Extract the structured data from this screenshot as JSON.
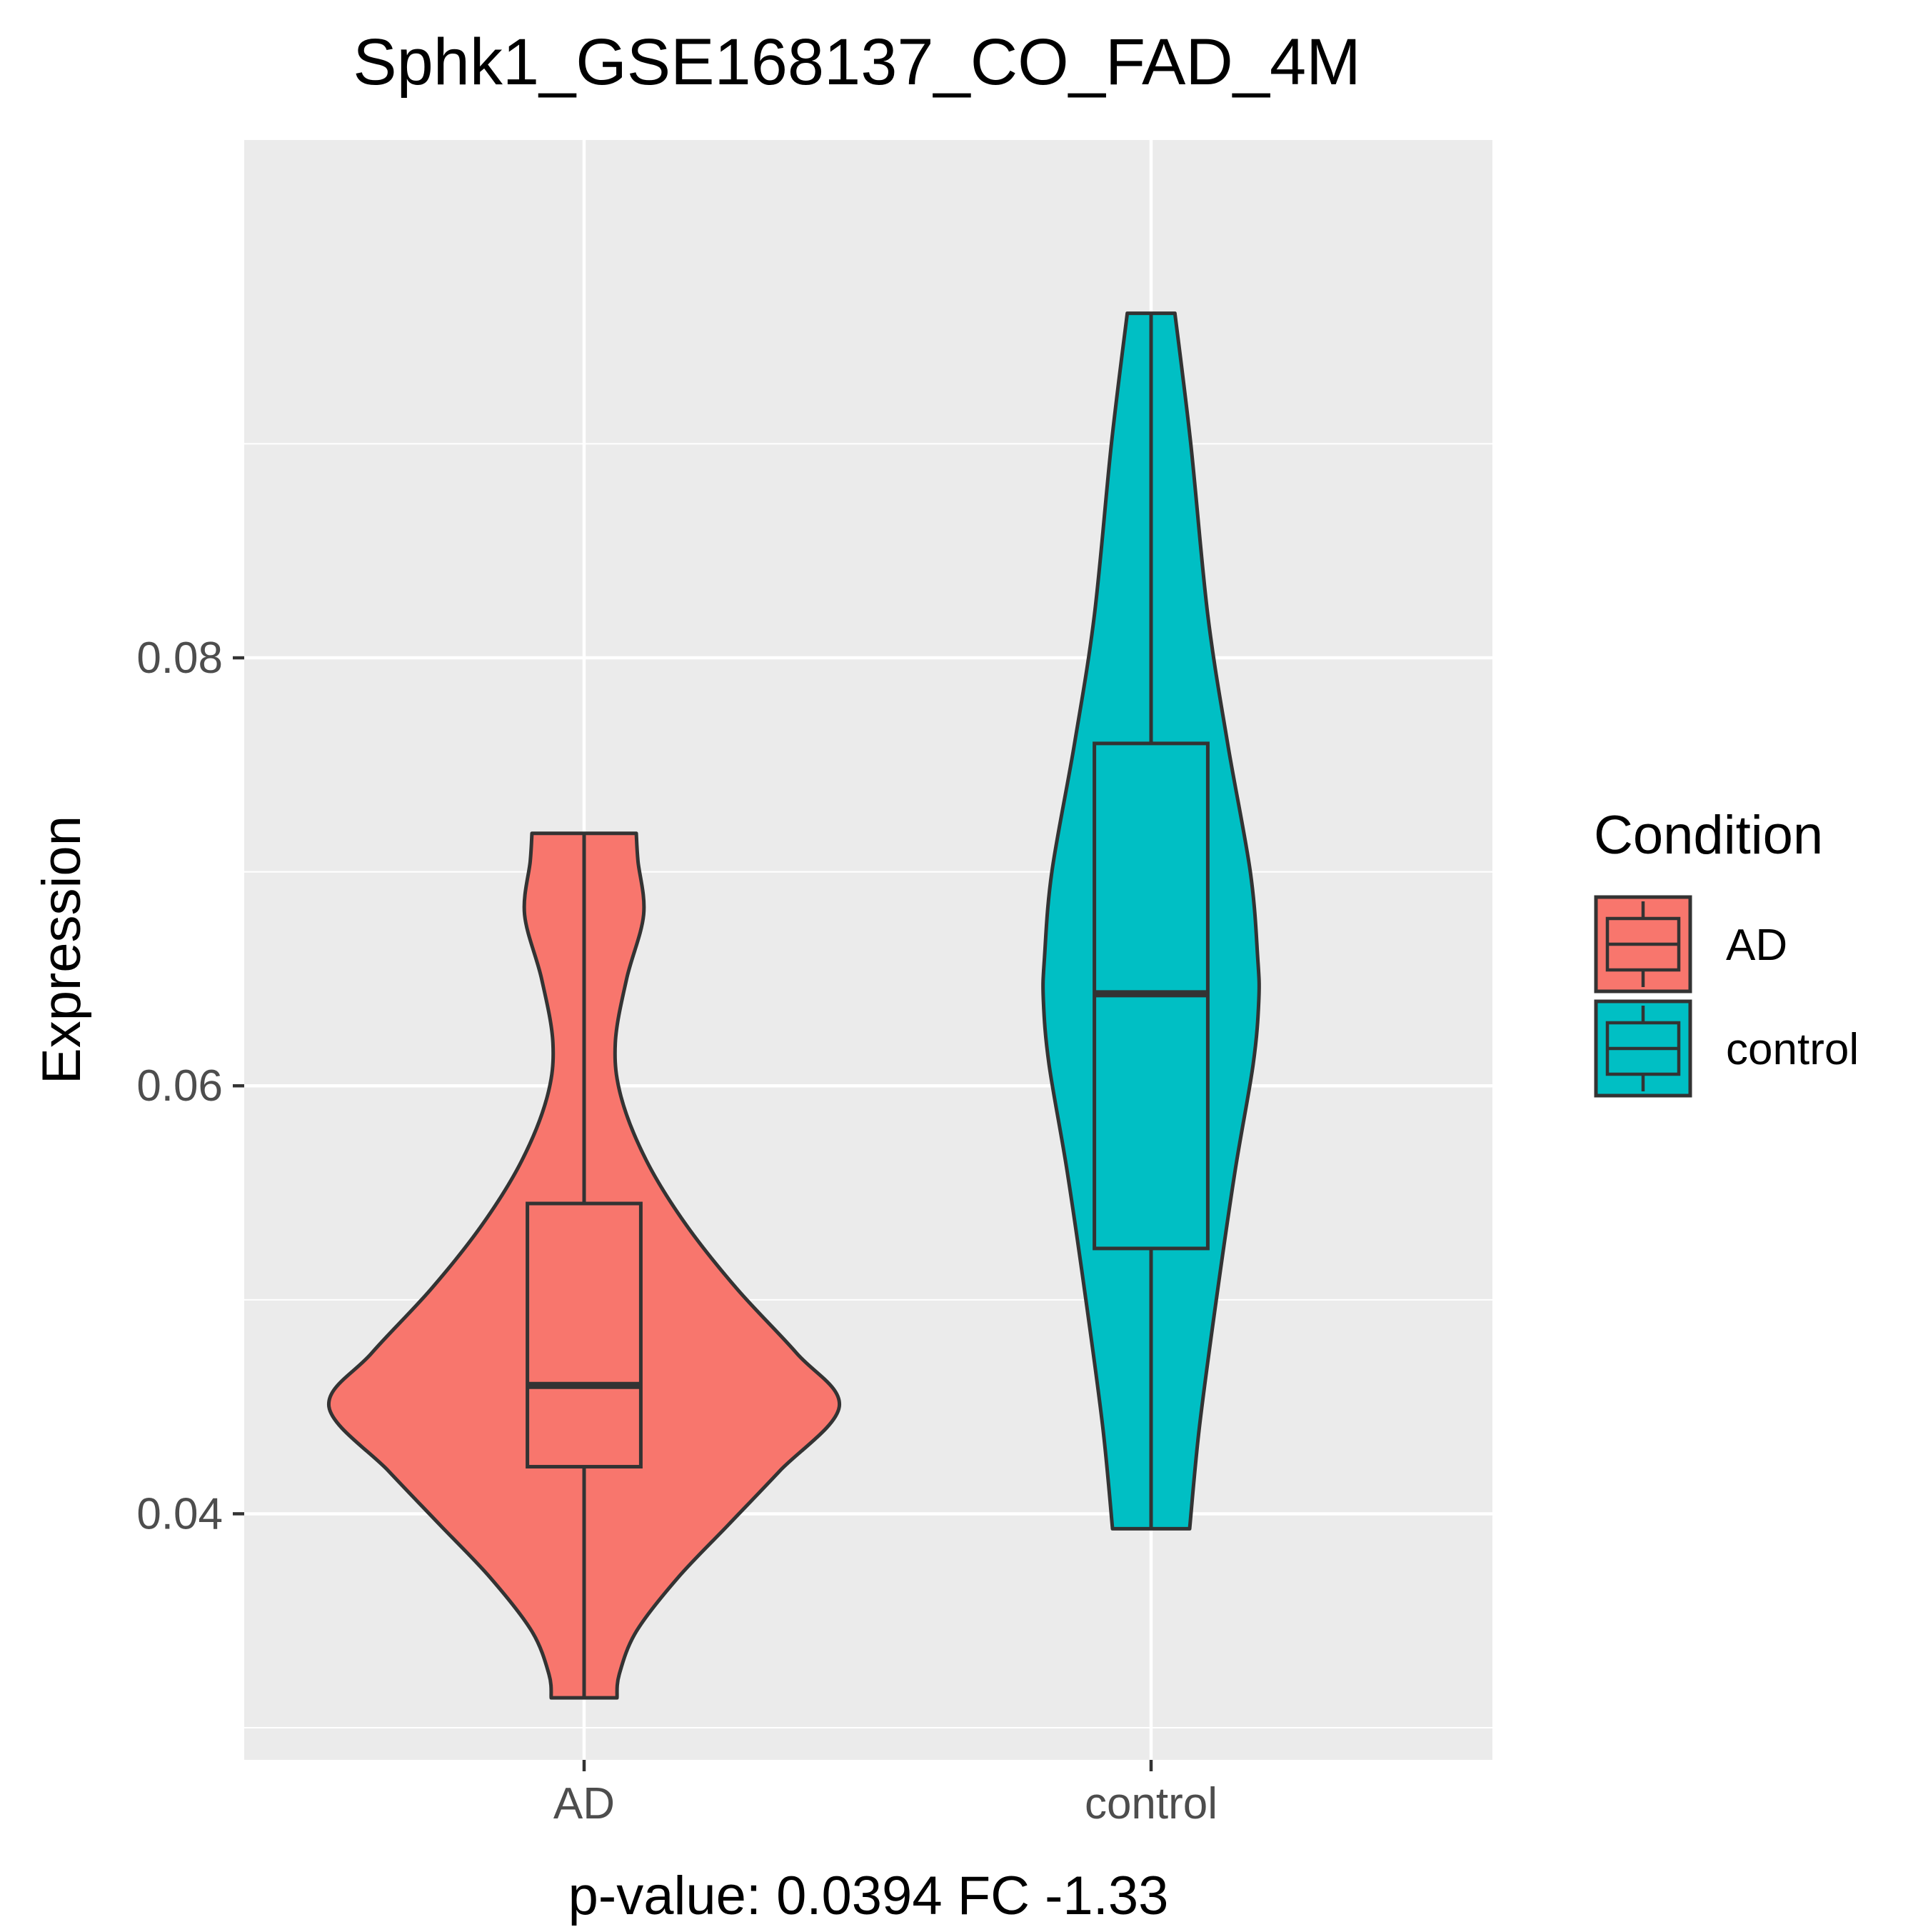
{
  "chart_data": {
    "type": "violin",
    "title": "Sphk1_GSE168137_CO_FAD_4M",
    "xlabel": "p-value: 0.0394 FC -1.33",
    "ylabel": "Expression",
    "categories": [
      "AD",
      "control"
    ],
    "y_ticks": [
      0.04,
      0.06,
      0.08
    ],
    "y_tick_labels": [
      "0.04",
      "0.06",
      "0.08"
    ],
    "ylim": [
      0.0285,
      0.1042
    ],
    "grid": true,
    "legend": {
      "title": "Condition",
      "position": "right",
      "entries": [
        "AD",
        "control"
      ]
    },
    "series": [
      {
        "category": "AD",
        "color": "#F8766D",
        "violin": {
          "y": [
            0.0314,
            0.0325,
            0.0345,
            0.037,
            0.0395,
            0.042,
            0.045,
            0.0475,
            0.0505,
            0.0535,
            0.0565,
            0.0595,
            0.062,
            0.065,
            0.068,
            0.0705,
            0.0718
          ],
          "half_width": [
            0.058,
            0.062,
            0.092,
            0.165,
            0.255,
            0.345,
            0.45,
            0.375,
            0.27,
            0.18,
            0.11,
            0.065,
            0.055,
            0.075,
            0.105,
            0.095,
            0.092
          ]
        },
        "box": {
          "min": 0.0314,
          "q1": 0.0422,
          "median": 0.046,
          "q3": 0.0545,
          "max": 0.0718
        }
      },
      {
        "category": "control",
        "color": "#00BFC4",
        "violin": {
          "y": [
            0.0393,
            0.044,
            0.05,
            0.056,
            0.061,
            0.064,
            0.066,
            0.07,
            0.076,
            0.082,
            0.09,
            0.0961
          ],
          "half_width": [
            0.068,
            0.085,
            0.115,
            0.148,
            0.18,
            0.19,
            0.188,
            0.175,
            0.135,
            0.1,
            0.07,
            0.042
          ]
        },
        "box": {
          "min": 0.0393,
          "q1": 0.0524,
          "median": 0.0643,
          "q3": 0.076,
          "max": 0.0961
        }
      }
    ]
  }
}
